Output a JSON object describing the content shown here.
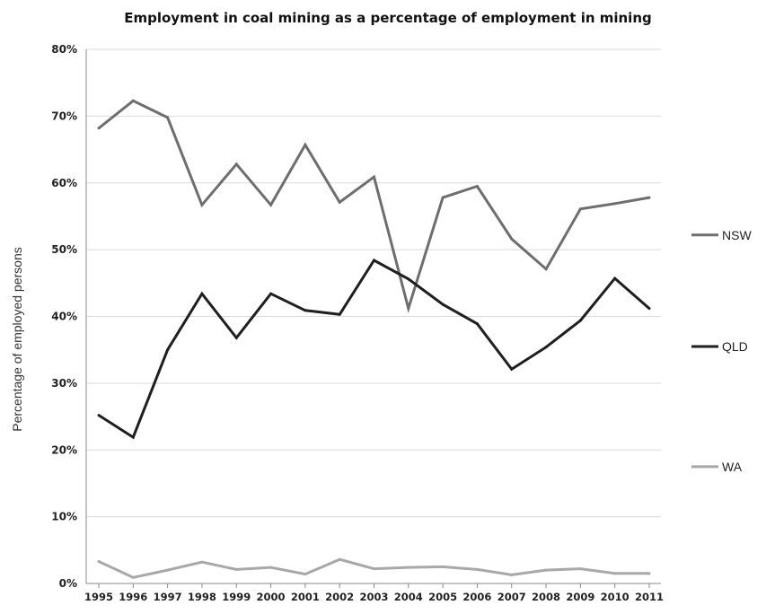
{
  "chart_data": {
    "type": "line",
    "title": "Employment in coal mining as a percentage of employment in mining",
    "ylabel": "Percentage of employed persons",
    "xlabel": "",
    "x": [
      "1995",
      "1996",
      "1997",
      "1998",
      "1999",
      "2000",
      "2001",
      "2002",
      "2003",
      "2004",
      "2005",
      "2006",
      "2007",
      "2008",
      "2009",
      "2010",
      "2011"
    ],
    "ylim": [
      0,
      80
    ],
    "yticks": [
      "0%",
      "10%",
      "20%",
      "30%",
      "40%",
      "50%",
      "60%",
      "70%",
      "80%"
    ],
    "grid": true,
    "legend_position": "right",
    "series": [
      {
        "name": "NSW",
        "color": "#6e6e6e",
        "values": [
          68.2,
          72.3,
          69.8,
          56.7,
          62.8,
          56.7,
          65.7,
          57.1,
          60.9,
          41.2,
          57.8,
          59.5,
          51.6,
          47.1,
          56.1,
          56.9,
          57.8
        ]
      },
      {
        "name": "QLD",
        "color": "#1f1f1f",
        "values": [
          25.2,
          21.9,
          35.0,
          43.4,
          36.8,
          43.4,
          40.9,
          40.3,
          48.4,
          45.6,
          41.8,
          38.9,
          32.1,
          35.4,
          39.4,
          45.7,
          41.2
        ]
      },
      {
        "name": "WA",
        "color": "#a8a8a8",
        "values": [
          3.3,
          0.9,
          2.0,
          3.2,
          2.1,
          2.4,
          1.4,
          3.6,
          2.2,
          2.4,
          2.5,
          2.1,
          1.3,
          2.0,
          2.2,
          1.5,
          1.5
        ]
      }
    ]
  }
}
